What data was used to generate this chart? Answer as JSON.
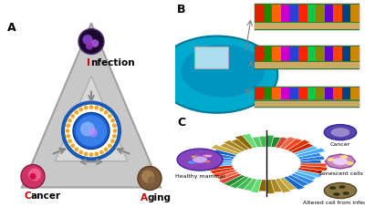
{
  "panel_a_label": "A",
  "panel_b_label": "B",
  "panel_c_label": "C",
  "triangle_color": "#c8c8c8",
  "triangle_edge_color": "#a0a0a0",
  "inner_triangle_color": "#d8d8d8",
  "infection_label": "Infection",
  "cancer_label": "Cancer",
  "aging_label": "Aging",
  "infection_color_I": "#cc0000",
  "cancer_color_C": "#cc0000",
  "aging_color_A": "#cc0000",
  "label_rest_color": "#000000",
  "bg_color": "#ffffff",
  "circle_outer_color": "#1a5cb5",
  "circle_dot_color": "#f5a623",
  "circle_inner_color": "#3a7bd5",
  "arrow_color": "#888888",
  "healthy_mammal_label": "Healthy mammal",
  "cancer_cell_label": "Cancer",
  "senescent_label": "Senescent cells",
  "altered_label": "Altered cell from infection",
  "figsize": [
    4.0,
    2.27
  ],
  "dpi": 100
}
